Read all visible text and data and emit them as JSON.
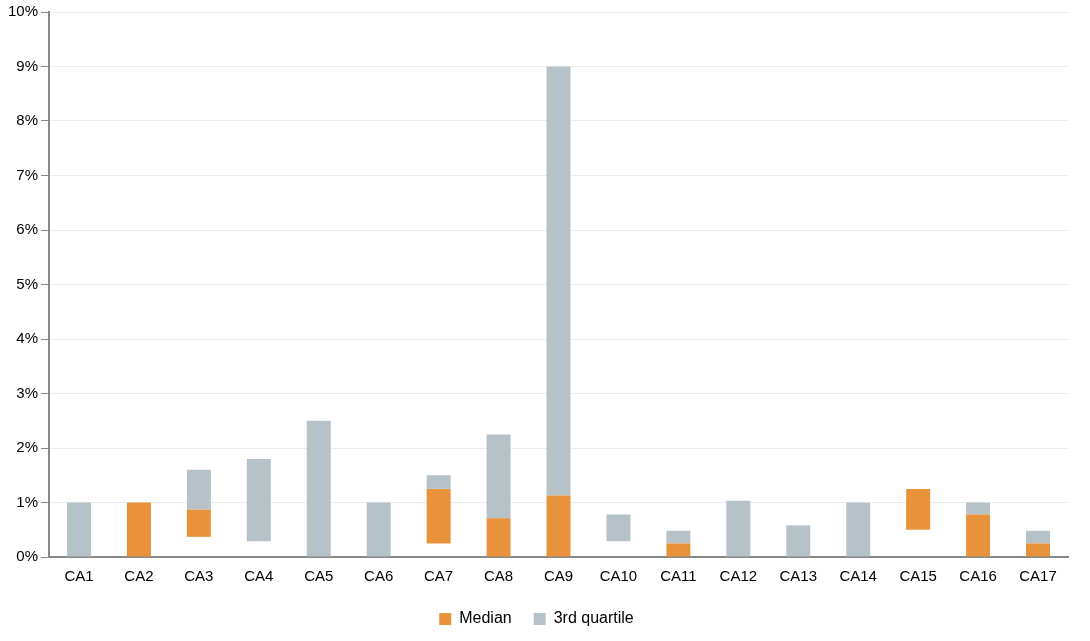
{
  "chart_data": {
    "type": "bar",
    "categories": [
      "CA1",
      "CA2",
      "CA3",
      "CA4",
      "CA5",
      "CA6",
      "CA7",
      "CA8",
      "CA9",
      "CA10",
      "CA11",
      "CA12",
      "CA13",
      "CA14",
      "CA15",
      "CA16",
      "CA17"
    ],
    "series": [
      {
        "name": "Median",
        "color": "#e8923b",
        "base": [
          null,
          0,
          0.37,
          null,
          null,
          null,
          0.25,
          0,
          0,
          null,
          0,
          null,
          null,
          null,
          0.5,
          0,
          0
        ],
        "values": [
          null,
          1.0,
          0.5,
          null,
          null,
          null,
          1.0,
          0.71,
          1.13,
          null,
          0.25,
          null,
          null,
          null,
          0.75,
          0.78,
          0.25
        ]
      },
      {
        "name": "3rd quartile",
        "color": "#b5c2c8",
        "base": [
          0,
          null,
          0.87,
          0.29,
          0,
          0,
          1.25,
          0.71,
          1.13,
          0.29,
          0.25,
          0,
          0,
          0,
          null,
          0.78,
          0.25
        ],
        "values": [
          1.0,
          null,
          0.73,
          1.51,
          2.5,
          1.0,
          0.25,
          1.54,
          7.87,
          0.49,
          0.23,
          1.03,
          0.58,
          1.0,
          null,
          0.22,
          0.23
        ]
      }
    ],
    "ylim": [
      0,
      10
    ],
    "yticks": [
      {
        "value": 0,
        "label": "0%"
      },
      {
        "value": 1,
        "label": "1%"
      },
      {
        "value": 2,
        "label": "2%"
      },
      {
        "value": 3,
        "label": "3%"
      },
      {
        "value": 4,
        "label": "4%"
      },
      {
        "value": 5,
        "label": "5%"
      },
      {
        "value": 6,
        "label": "6%"
      },
      {
        "value": 7,
        "label": "7%"
      },
      {
        "value": 8,
        "label": "8%"
      },
      {
        "value": 9,
        "label": "9%"
      },
      {
        "value": 10,
        "label": "10%"
      }
    ],
    "grid": "y",
    "legend": "bottom"
  }
}
